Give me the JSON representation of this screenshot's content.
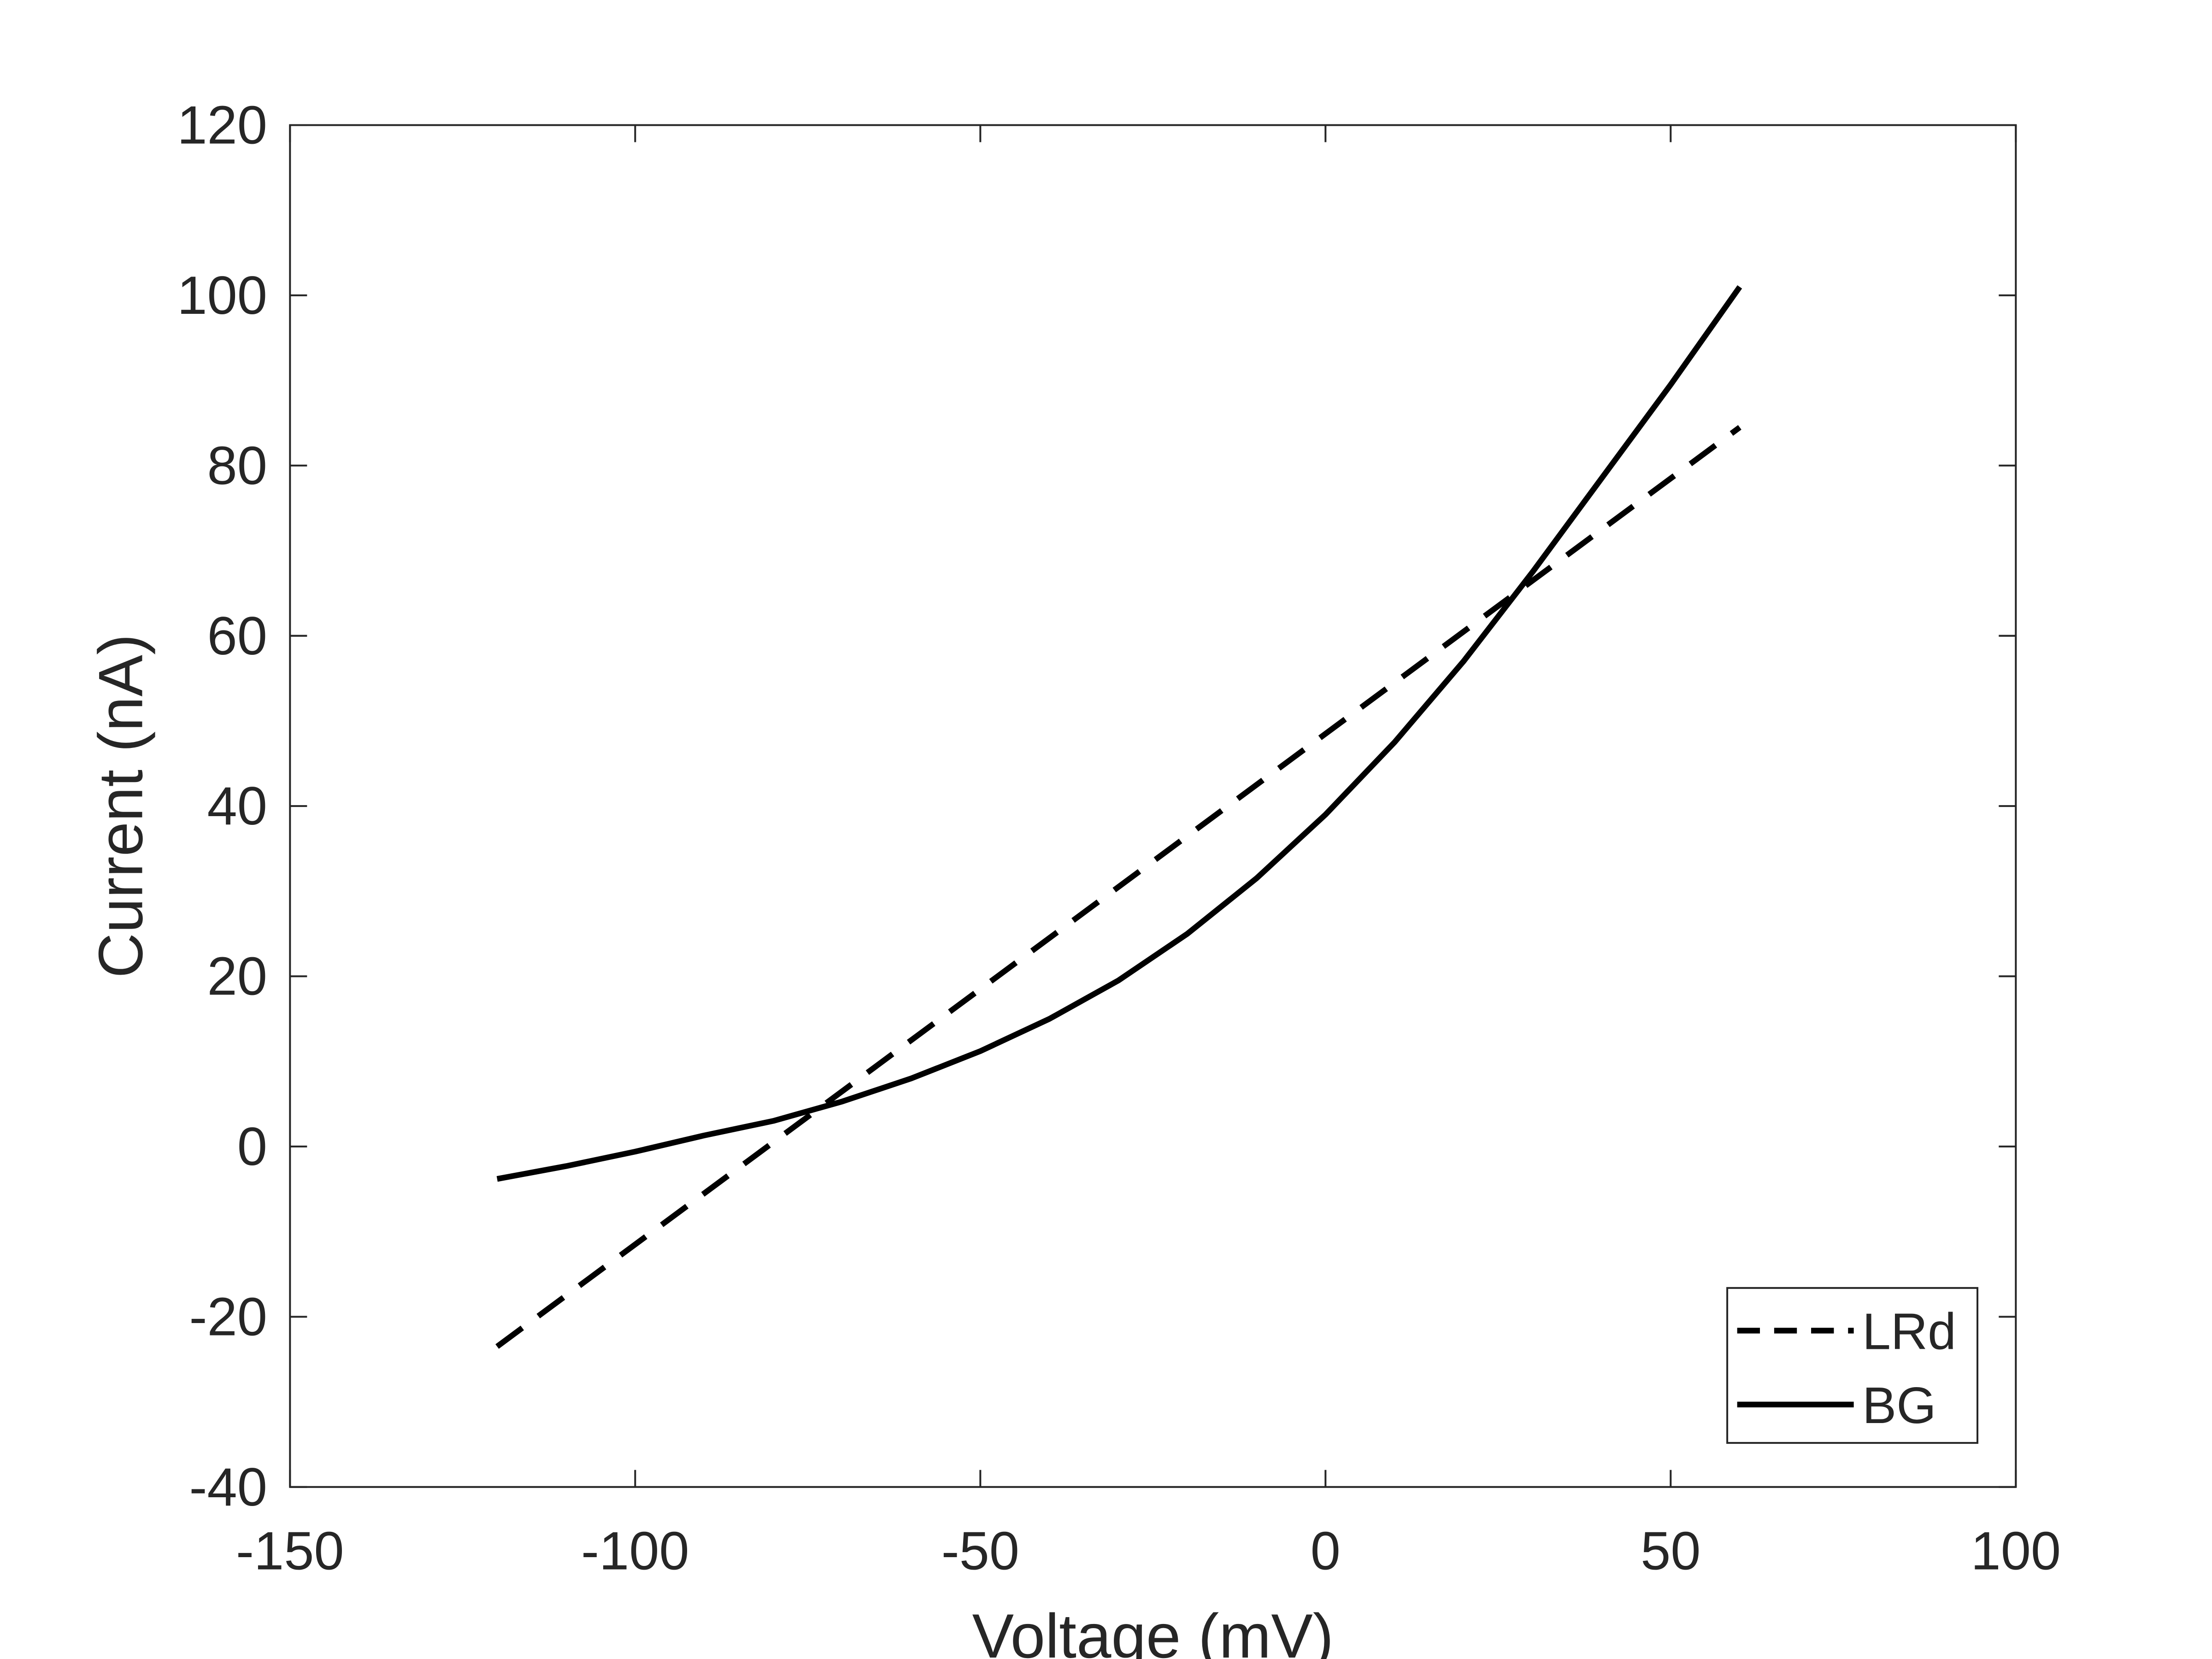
{
  "chart_data": {
    "type": "line",
    "title": "",
    "xlabel": "Voltage (mV)",
    "ylabel": "Current (nA)",
    "xlim": [
      -150,
      100
    ],
    "ylim": [
      -40,
      120
    ],
    "xticks": [
      -150,
      -100,
      -50,
      0,
      50,
      100
    ],
    "yticks": [
      -40,
      -20,
      0,
      20,
      40,
      60,
      80,
      100,
      120
    ],
    "xtick_labels": [
      "-150",
      "-100",
      "-50",
      "0",
      "50",
      "100"
    ],
    "ytick_labels": [
      "-40",
      "-20",
      "0",
      "20",
      "40",
      "60",
      "80",
      "100",
      "120"
    ],
    "grid": false,
    "legend_position": "bottom-right",
    "series": [
      {
        "name": "LRd",
        "style": "dashed",
        "color": "#000000",
        "x": [
          -120,
          60
        ],
        "y": [
          -23.5,
          84.5
        ]
      },
      {
        "name": "BG",
        "style": "solid",
        "color": "#000000",
        "x": [
          -120,
          -110,
          -100,
          -90,
          -80,
          -70,
          -60,
          -50,
          -40,
          -30,
          -20,
          -10,
          0,
          10,
          20,
          30,
          40,
          50,
          60
        ],
        "y": [
          -3.8,
          -2.3,
          -0.6,
          1.3,
          3.0,
          5.3,
          8.0,
          11.2,
          15.0,
          19.5,
          25.0,
          31.5,
          39.0,
          47.5,
          57.0,
          67.5,
          78.5,
          89.5,
          101.0
        ]
      }
    ]
  }
}
